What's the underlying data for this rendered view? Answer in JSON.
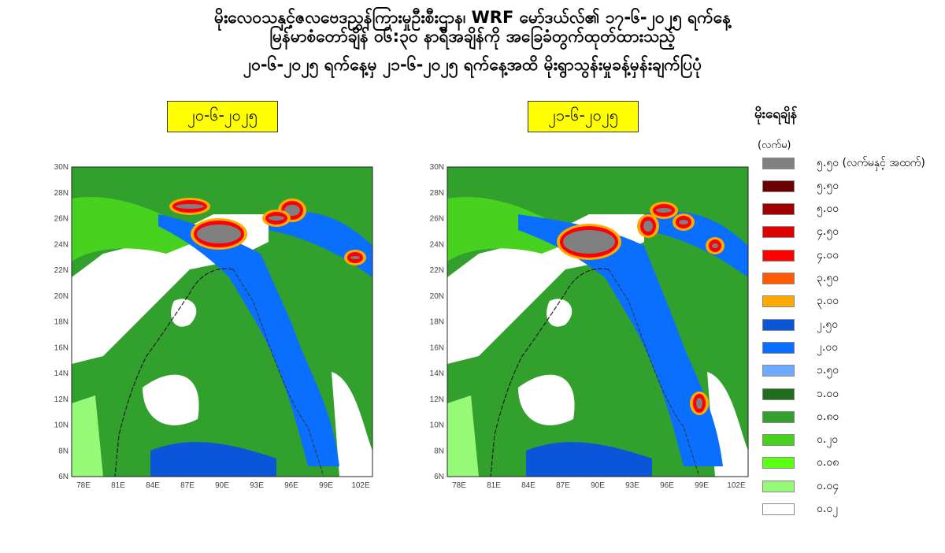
{
  "title": {
    "line1": "မိုးလေဝသနှင့်ဇလဗေဒညွှန်ကြားမှုဦးစီးဌာန၊ WRF မော်ဒယ်လ်၏ ၁၇-၆-၂၀၂၅ ရက်နေ့",
    "line2": "မြန်မာစံတော်ချိန် ၀၆:၃၀ နာရီအချိန်ကို အခြေခံတွက်ထုတ်ထားသည့်",
    "line3": "၂၀-၆-၂၀၂၅ ရက်နေ့မှ ၂၁-၆-၂၀၂၅ ရက်နေ့အထိ မိုးရွာသွန်းမှုခန့်မှန်းချက်ပြပုံ"
  },
  "panels": [
    {
      "date": "၂၀-၆-၂၀၂၅"
    },
    {
      "date": "၂၁-၆-၂၀၂၅"
    }
  ],
  "axes": {
    "lat_labels": [
      "30N",
      "28N",
      "26N",
      "24N",
      "22N",
      "20N",
      "18N",
      "16N",
      "14N",
      "12N",
      "10N",
      "8N",
      "6N"
    ],
    "lon_labels": [
      "78E",
      "81E",
      "84E",
      "87E",
      "90E",
      "93E",
      "96E",
      "99E",
      "102E"
    ]
  },
  "legend": {
    "title": "မိုးရေချိန်",
    "unit": "(လက်မ)",
    "items": [
      {
        "label": "၅.၅၀ (လက်မနှင့် အထက်)",
        "color": "#808080"
      },
      {
        "label": "၅.၅၀",
        "color": "#6b0000"
      },
      {
        "label": "၅.၀၀",
        "color": "#a00000"
      },
      {
        "label": "၄.၅၀",
        "color": "#dd0000"
      },
      {
        "label": "၄.၀၀",
        "color": "#ff0000"
      },
      {
        "label": "၃.၅၀",
        "color": "#ff5a00"
      },
      {
        "label": "၃.၀၀",
        "color": "#ffaa00"
      },
      {
        "label": "၂.၅၀",
        "color": "#0a55d8"
      },
      {
        "label": "၂.၀၀",
        "color": "#0a6eff"
      },
      {
        "label": "၁.၅၀",
        "color": "#6eaaff"
      },
      {
        "label": "၁.၀၀",
        "color": "#1e6e1e"
      },
      {
        "label": "၀.၈၀",
        "color": "#32a02d"
      },
      {
        "label": "၀.၂၀",
        "color": "#46d21e"
      },
      {
        "label": "၀.၀၈",
        "color": "#5aff14"
      },
      {
        "label": "၀.၀၄",
        "color": "#96fa78"
      },
      {
        "label": "၀.၀၂",
        "color": "#ffffff"
      }
    ]
  }
}
